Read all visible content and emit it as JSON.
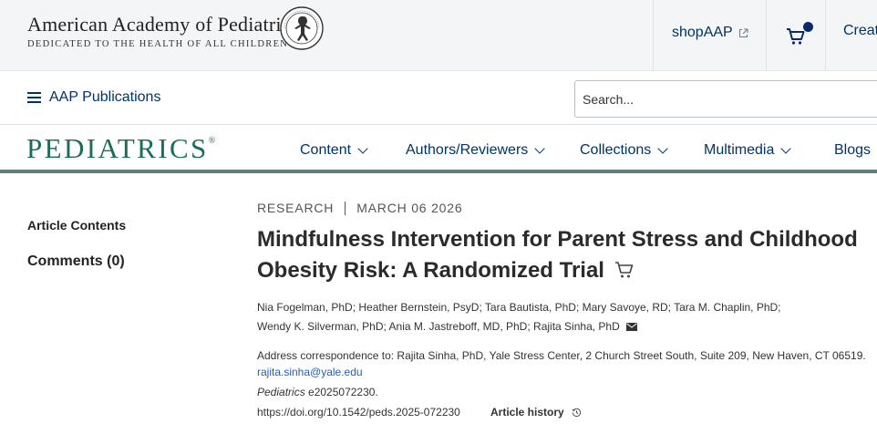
{
  "header": {
    "org_name": "American Academy of Pediatrics",
    "org_tagline": "DEDICATED TO THE HEALTH OF ALL CHILDREN®",
    "shop_label": "shopAAP",
    "create_label": "Create"
  },
  "pubbar": {
    "menu_label": "AAP Publications",
    "search_placeholder": "Search..."
  },
  "journal": {
    "name": "PEDIATRICS",
    "mark": "®",
    "nav": [
      {
        "label": "Content"
      },
      {
        "label": "Authors/Reviewers"
      },
      {
        "label": "Collections"
      },
      {
        "label": "Multimedia"
      },
      {
        "label": "Blogs"
      }
    ]
  },
  "sidebar": {
    "article_contents": "Article Contents",
    "comments": "Comments (0)"
  },
  "article": {
    "type": "RESEARCH",
    "date": "MARCH 06 2026",
    "title": "Mindfulness Intervention for Parent Stress and Childhood Obesity Risk: A Randomized Trial",
    "authors": [
      "Nia Fogelman, PhD",
      "Heather Bernstein, PsyD",
      "Tara Bautista, PhD",
      "Mary Savoye, RD",
      "Tara M. Chaplin, PhD",
      "Wendy K. Silverman, PhD",
      "Ania M. Jastreboff, MD, PhD",
      "Rajita Sinha, PhD"
    ],
    "correspondence": "Address correspondence to: Rajita Sinha, PhD, Yale Stress Center, 2 Church Street South, Suite 209, New Haven, CT 06519.",
    "email": "rajita.sinha@yale.edu",
    "journal_italic": "Pediatrics",
    "citation_id": " e2025072230.",
    "doi": "https://doi.org/10.1542/peds.2025-072230",
    "history_label": "Article history"
  }
}
